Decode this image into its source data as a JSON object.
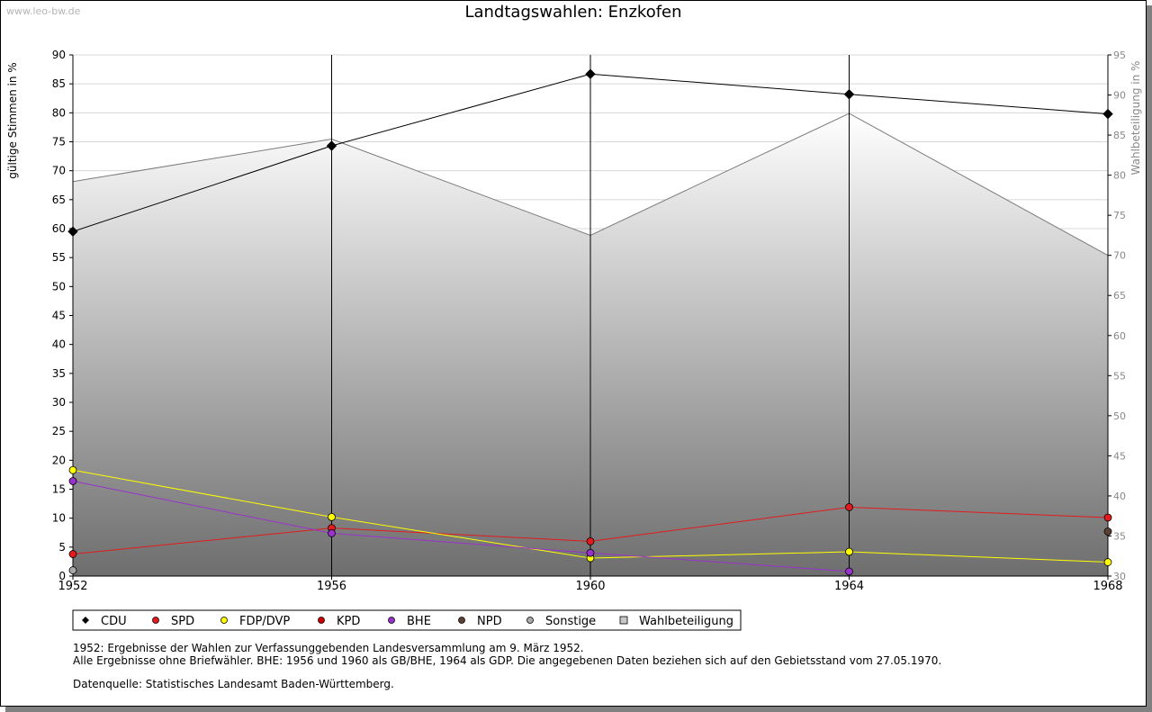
{
  "watermark": "www.leo-bw.de",
  "chart_data": {
    "type": "line",
    "title": "Landtagswahlen: Enzkofen",
    "ylabel": "gültige Stimmen in %",
    "y2label": "Wahlbeteiligung in %",
    "x": [
      1952,
      1956,
      1960,
      1964,
      1968
    ],
    "ylim": [
      0,
      90
    ],
    "yticks": [
      0,
      5,
      10,
      15,
      20,
      25,
      30,
      35,
      40,
      45,
      50,
      55,
      60,
      65,
      70,
      75,
      80,
      85,
      90
    ],
    "y2lim": [
      30,
      95
    ],
    "y2ticks": [
      30,
      35,
      40,
      45,
      50,
      55,
      60,
      65,
      70,
      75,
      80,
      85,
      90,
      95
    ],
    "series": [
      {
        "name": "CDU",
        "color": "#000000",
        "points": [
          [
            1952,
            59.5
          ],
          [
            1956,
            74.3
          ],
          [
            1960,
            86.7
          ],
          [
            1964,
            83.2
          ],
          [
            1968,
            79.8
          ]
        ]
      },
      {
        "name": "SPD",
        "color": "#e41a1c",
        "points": [
          [
            1952,
            3.8
          ],
          [
            1956,
            8.3
          ],
          [
            1960,
            6.0
          ],
          [
            1964,
            11.9
          ],
          [
            1968,
            10.1
          ]
        ]
      },
      {
        "name": "FDP/DVP",
        "color": "#ffff00",
        "points": [
          [
            1952,
            18.3
          ],
          [
            1956,
            10.2
          ],
          [
            1960,
            3.1
          ],
          [
            1964,
            4.2
          ],
          [
            1968,
            2.4
          ]
        ]
      },
      {
        "name": "KPD",
        "color": "#cc0000",
        "points": []
      },
      {
        "name": "BHE",
        "color": "#9932cc",
        "points": [
          [
            1952,
            16.4
          ],
          [
            1956,
            7.4
          ],
          [
            1960,
            4.0
          ],
          [
            1964,
            0.8
          ]
        ]
      },
      {
        "name": "NPD",
        "color": "#5c4033",
        "points": [
          [
            1968,
            7.7
          ]
        ]
      },
      {
        "name": "Sonstige",
        "color": "#a9a9a9",
        "points": [
          [
            1952,
            1.0
          ]
        ]
      }
    ],
    "turnout": {
      "name": "Wahlbeteiligung",
      "points": [
        [
          1952,
          79.2
        ],
        [
          1956,
          84.5
        ],
        [
          1960,
          72.5
        ],
        [
          1964,
          87.7
        ],
        [
          1968,
          70.0
        ]
      ]
    }
  },
  "notes": {
    "line1": "1952: Ergebnisse der Wahlen zur Verfassunggebenden Landesversammlung am 9. März 1952.",
    "line2": "Alle Ergebnisse ohne Briefwähler. BHE: 1956 und 1960 als GB/BHE, 1964 als GDP. Die angegebenen Daten beziehen sich auf den Gebietsstand vom 27.05.1970.",
    "line3": "Datenquelle: Statistisches Landesamt Baden-Württemberg."
  }
}
